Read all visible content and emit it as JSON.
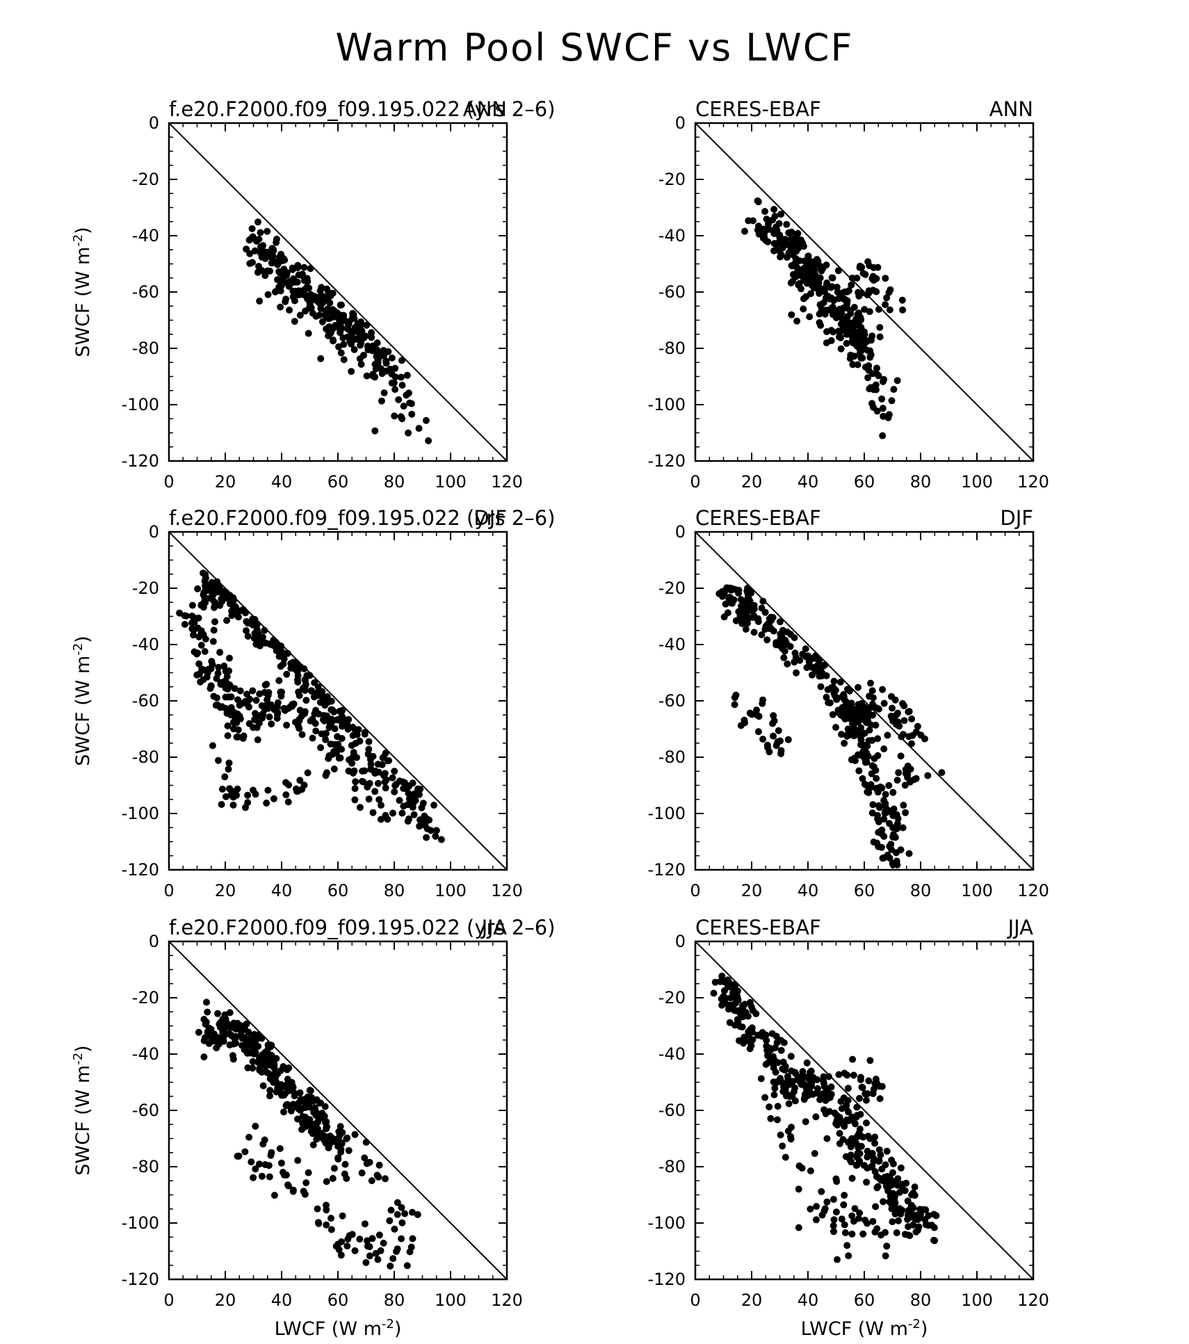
{
  "title": "Warm Pool SWCF vs LWCF",
  "chart_data": [
    {
      "type": "scatter",
      "title_left": "f.e20.F2000.f09_f09.195.022 (yrs 2–6)",
      "title_right": "ANN",
      "xlabel": "",
      "ylabel": "SWCF (W m",
      "label_exp": "-2",
      "xlim": [
        0,
        120
      ],
      "ylim": [
        -120,
        0
      ],
      "xticks": [
        "0",
        "20",
        "40",
        "60",
        "80",
        "100",
        "120"
      ],
      "yticks": [
        "0",
        "-20",
        "-40",
        "-60",
        "-80",
        "-100",
        "-120"
      ],
      "reference_line": [
        [
          0,
          0
        ],
        [
          120,
          -120
        ]
      ],
      "grid": false,
      "clusters": [
        {
          "anchors": [
            [
              30,
              -41
            ],
            [
              36,
              -46
            ],
            [
              42,
              -52
            ],
            [
              48,
              -58
            ],
            [
              54,
              -64
            ],
            [
              60,
              -68
            ],
            [
              68,
              -75
            ],
            [
              76,
              -84
            ],
            [
              84,
              -94
            ]
          ],
          "n": 200,
          "sx": 2.0,
          "sy": 3.0,
          "below": 2.5
        },
        {
          "anchors": [
            [
              31,
              -48
            ],
            [
              35,
              -54
            ],
            [
              40,
              -58
            ],
            [
              46,
              -63
            ],
            [
              52,
              -70
            ],
            [
              60,
              -76
            ],
            [
              70,
              -86
            ],
            [
              80,
              -98
            ],
            [
              90,
              -112
            ]
          ],
          "n": 100,
          "sx": 3.0,
          "sy": 4.0,
          "below": 5
        }
      ]
    },
    {
      "type": "scatter",
      "title_left": "CERES-EBAF",
      "title_right": "ANN",
      "xlabel": "",
      "ylabel": "",
      "label_exp": "-2",
      "xlim": [
        0,
        120
      ],
      "ylim": [
        -120,
        0
      ],
      "xticks": [
        "0",
        "20",
        "40",
        "60",
        "80",
        "100",
        "120"
      ],
      "yticks": [
        "0",
        "-20",
        "-40",
        "-60",
        "-80",
        "-100",
        "-120"
      ],
      "reference_line": [
        [
          0,
          0
        ],
        [
          120,
          -120
        ]
      ],
      "grid": false,
      "clusters": [
        {
          "anchors": [
            [
              22,
              -35
            ],
            [
              27,
              -38
            ],
            [
              32,
              -43
            ],
            [
              37,
              -48
            ],
            [
              42,
              -55
            ],
            [
              48,
              -62
            ],
            [
              52,
              -67
            ],
            [
              58,
              -73
            ],
            [
              62,
              -78
            ]
          ],
          "n": 240,
          "sx": 3.0,
          "sy": 4.0,
          "below": 4
        },
        {
          "anchors": [
            [
              35,
              -55
            ],
            [
              45,
              -68
            ],
            [
              55,
              -80
            ],
            [
              60,
              -88
            ],
            [
              66,
              -95
            ],
            [
              68,
              -104
            ]
          ],
          "n": 80,
          "sx": 3.5,
          "sy": 5.0,
          "below": 10
        },
        {
          "anchors": [
            [
              50,
              -58
            ],
            [
              58,
              -56
            ],
            [
              62,
              -52
            ],
            [
              66,
              -62
            ],
            [
              70,
              -68
            ]
          ],
          "n": 35,
          "sx": 3.0,
          "sy": 4.0,
          "below": 0
        }
      ]
    },
    {
      "type": "scatter",
      "title_left": "f.e20.F2000.f09_f09.195.022 (yrs 2–6)",
      "title_right": "DJF",
      "xlabel": "",
      "ylabel": "SWCF (W m",
      "label_exp": "-2",
      "xlim": [
        0,
        120
      ],
      "ylim": [
        -120,
        0
      ],
      "xticks": [
        "0",
        "20",
        "40",
        "60",
        "80",
        "100",
        "120"
      ],
      "yticks": [
        "0",
        "-20",
        "-40",
        "-60",
        "-80",
        "-100",
        "-120"
      ],
      "reference_line": [
        [
          0,
          0
        ],
        [
          120,
          -120
        ]
      ],
      "grid": false,
      "clusters": [
        {
          "anchors": [
            [
              10,
              -22
            ],
            [
              15,
              -21
            ],
            [
              20,
              -22
            ],
            [
              28,
              -28
            ],
            [
              36,
              -34
            ],
            [
              44,
              -43
            ],
            [
              52,
              -55
            ],
            [
              60,
              -66
            ],
            [
              70,
              -78
            ],
            [
              80,
              -88
            ],
            [
              88,
              -98
            ],
            [
              94,
              -108
            ]
          ],
          "n": 260,
          "sx": 2.5,
          "sy": 3.5,
          "below": 4
        },
        {
          "anchors": [
            [
              8,
              -30
            ],
            [
              12,
              -40
            ],
            [
              16,
              -48
            ],
            [
              20,
              -58
            ],
            [
              24,
              -68
            ],
            [
              28,
              -64
            ],
            [
              36,
              -62
            ],
            [
              44,
              -60
            ],
            [
              52,
              -68
            ],
            [
              60,
              -76
            ],
            [
              70,
              -90
            ],
            [
              80,
              -100
            ]
          ],
          "n": 240,
          "sx": 3.5,
          "sy": 4.5,
          "below": 3
        },
        {
          "anchors": [
            [
              18,
              -80
            ],
            [
              22,
              -86
            ],
            [
              22,
              -95
            ],
            [
              26,
              -94
            ],
            [
              34,
              -96
            ],
            [
              42,
              -92
            ],
            [
              48,
              -89
            ]
          ],
          "n": 35,
          "sx": 2.5,
          "sy": 2.5,
          "below": 0
        }
      ]
    },
    {
      "type": "scatter",
      "title_left": "CERES-EBAF",
      "title_right": "DJF",
      "xlabel": "",
      "ylabel": "",
      "label_exp": "-2",
      "xlim": [
        0,
        120
      ],
      "ylim": [
        -120,
        0
      ],
      "xticks": [
        "0",
        "20",
        "40",
        "60",
        "80",
        "100",
        "120"
      ],
      "yticks": [
        "0",
        "-20",
        "-40",
        "-60",
        "-80",
        "-100",
        "-120"
      ],
      "reference_line": [
        [
          0,
          0
        ],
        [
          120,
          -120
        ]
      ],
      "grid": false,
      "clusters": [
        {
          "anchors": [
            [
              10,
              -23
            ],
            [
              14,
              -25
            ],
            [
              20,
              -28
            ],
            [
              28,
              -35
            ],
            [
              36,
              -42
            ],
            [
              44,
              -50
            ],
            [
              50,
              -57
            ],
            [
              56,
              -64
            ],
            [
              62,
              -72
            ]
          ],
          "n": 220,
          "sx": 2.5,
          "sy": 3.5,
          "below": 5
        },
        {
          "anchors": [
            [
              55,
              -68
            ],
            [
              60,
              -78
            ],
            [
              64,
              -88
            ],
            [
              68,
              -98
            ],
            [
              70,
              -108
            ],
            [
              72,
              -116
            ]
          ],
          "n": 120,
          "sx": 3.0,
          "sy": 4.0,
          "below": 0
        },
        {
          "anchors": [
            [
              60,
              -64
            ],
            [
              66,
              -62
            ],
            [
              72,
              -66
            ],
            [
              76,
              -72
            ],
            [
              80,
              -80
            ],
            [
              74,
              -85
            ]
          ],
          "n": 60,
          "sx": 3.0,
          "sy": 4.0,
          "below": 0
        },
        {
          "anchors": [
            [
              16,
              -60
            ],
            [
              20,
              -65
            ],
            [
              26,
              -70
            ],
            [
              30,
              -75
            ],
            [
              34,
              -70
            ]
          ],
          "n": 30,
          "sx": 3.0,
          "sy": 4.0,
          "below": 0
        }
      ]
    },
    {
      "type": "scatter",
      "title_left": "f.e20.F2000.f09_f09.195.022 (yrs 2–6)",
      "title_right": "JJA",
      "xlabel": "LWCF (W m",
      "ylabel": "SWCF (W m",
      "label_exp": "-2",
      "xlim": [
        0,
        120
      ],
      "ylim": [
        -120,
        0
      ],
      "xticks": [
        "0",
        "20",
        "40",
        "60",
        "80",
        "100",
        "120"
      ],
      "yticks": [
        "0",
        "-20",
        "-40",
        "-60",
        "-80",
        "-100",
        "-120"
      ],
      "reference_line": [
        [
          0,
          0
        ],
        [
          120,
          -120
        ]
      ],
      "grid": false,
      "clusters": [
        {
          "anchors": [
            [
              14,
              -30
            ],
            [
              20,
              -32
            ],
            [
              26,
              -33
            ],
            [
              32,
              -40
            ],
            [
              38,
              -48
            ],
            [
              44,
              -54
            ],
            [
              50,
              -60
            ],
            [
              56,
              -67
            ],
            [
              62,
              -74
            ]
          ],
          "n": 300,
          "sx": 3.0,
          "sy": 3.5,
          "below": 4
        },
        {
          "anchors": [
            [
              26,
              -70
            ],
            [
              34,
              -78
            ],
            [
              42,
              -82
            ],
            [
              50,
              -90
            ],
            [
              56,
              -102
            ],
            [
              62,
              -108
            ],
            [
              70,
              -104
            ],
            [
              76,
              -112
            ]
          ],
          "n": 70,
          "sx": 4.0,
          "sy": 5.0,
          "below": 0
        },
        {
          "anchors": [
            [
              60,
              -80
            ],
            [
              70,
              -82
            ],
            [
              78,
              -88
            ],
            [
              82,
              -100
            ],
            [
              86,
              -113
            ]
          ],
          "n": 30,
          "sx": 3.0,
          "sy": 4.0,
          "below": 0
        }
      ]
    },
    {
      "type": "scatter",
      "title_left": "CERES-EBAF",
      "title_right": "JJA",
      "xlabel": "LWCF (W m",
      "ylabel": "",
      "label_exp": "-2",
      "xlim": [
        0,
        120
      ],
      "ylim": [
        -120,
        0
      ],
      "xticks": [
        "0",
        "20",
        "40",
        "60",
        "80",
        "100",
        "120"
      ],
      "yticks": [
        "0",
        "-20",
        "-40",
        "-60",
        "-80",
        "-100",
        "-120"
      ],
      "reference_line": [
        [
          0,
          0
        ],
        [
          120,
          -120
        ]
      ],
      "grid": false,
      "clusters": [
        {
          "anchors": [
            [
              9,
              -12
            ],
            [
              12,
              -18
            ],
            [
              16,
              -26
            ],
            [
              20,
              -33
            ],
            [
              26,
              -40
            ],
            [
              32,
              -48
            ]
          ],
          "n": 110,
          "sx": 2.5,
          "sy": 3.5,
          "below": 4
        },
        {
          "anchors": [
            [
              30,
              -52
            ],
            [
              36,
              -50
            ],
            [
              42,
              -52
            ],
            [
              48,
              -56
            ],
            [
              54,
              -66
            ],
            [
              60,
              -74
            ],
            [
              66,
              -82
            ],
            [
              72,
              -90
            ],
            [
              78,
              -98
            ],
            [
              82,
              -104
            ]
          ],
          "n": 260,
          "sx": 3.5,
          "sy": 3.5,
          "below": 3
        },
        {
          "anchors": [
            [
              32,
              -62
            ],
            [
              36,
              -72
            ],
            [
              40,
              -84
            ],
            [
              46,
              -90
            ],
            [
              52,
              -96
            ],
            [
              56,
              -104
            ],
            [
              66,
              -100
            ],
            [
              72,
              -108
            ],
            [
              42,
              -104
            ]
          ],
          "n": 60,
          "sx": 4.0,
          "sy": 4.0,
          "below": 0
        },
        {
          "anchors": [
            [
              54,
              -46
            ],
            [
              58,
              -48
            ],
            [
              62,
              -50
            ],
            [
              66,
              -56
            ]
          ],
          "n": 25,
          "sx": 2.5,
          "sy": 3.0,
          "below": 0
        }
      ]
    }
  ]
}
